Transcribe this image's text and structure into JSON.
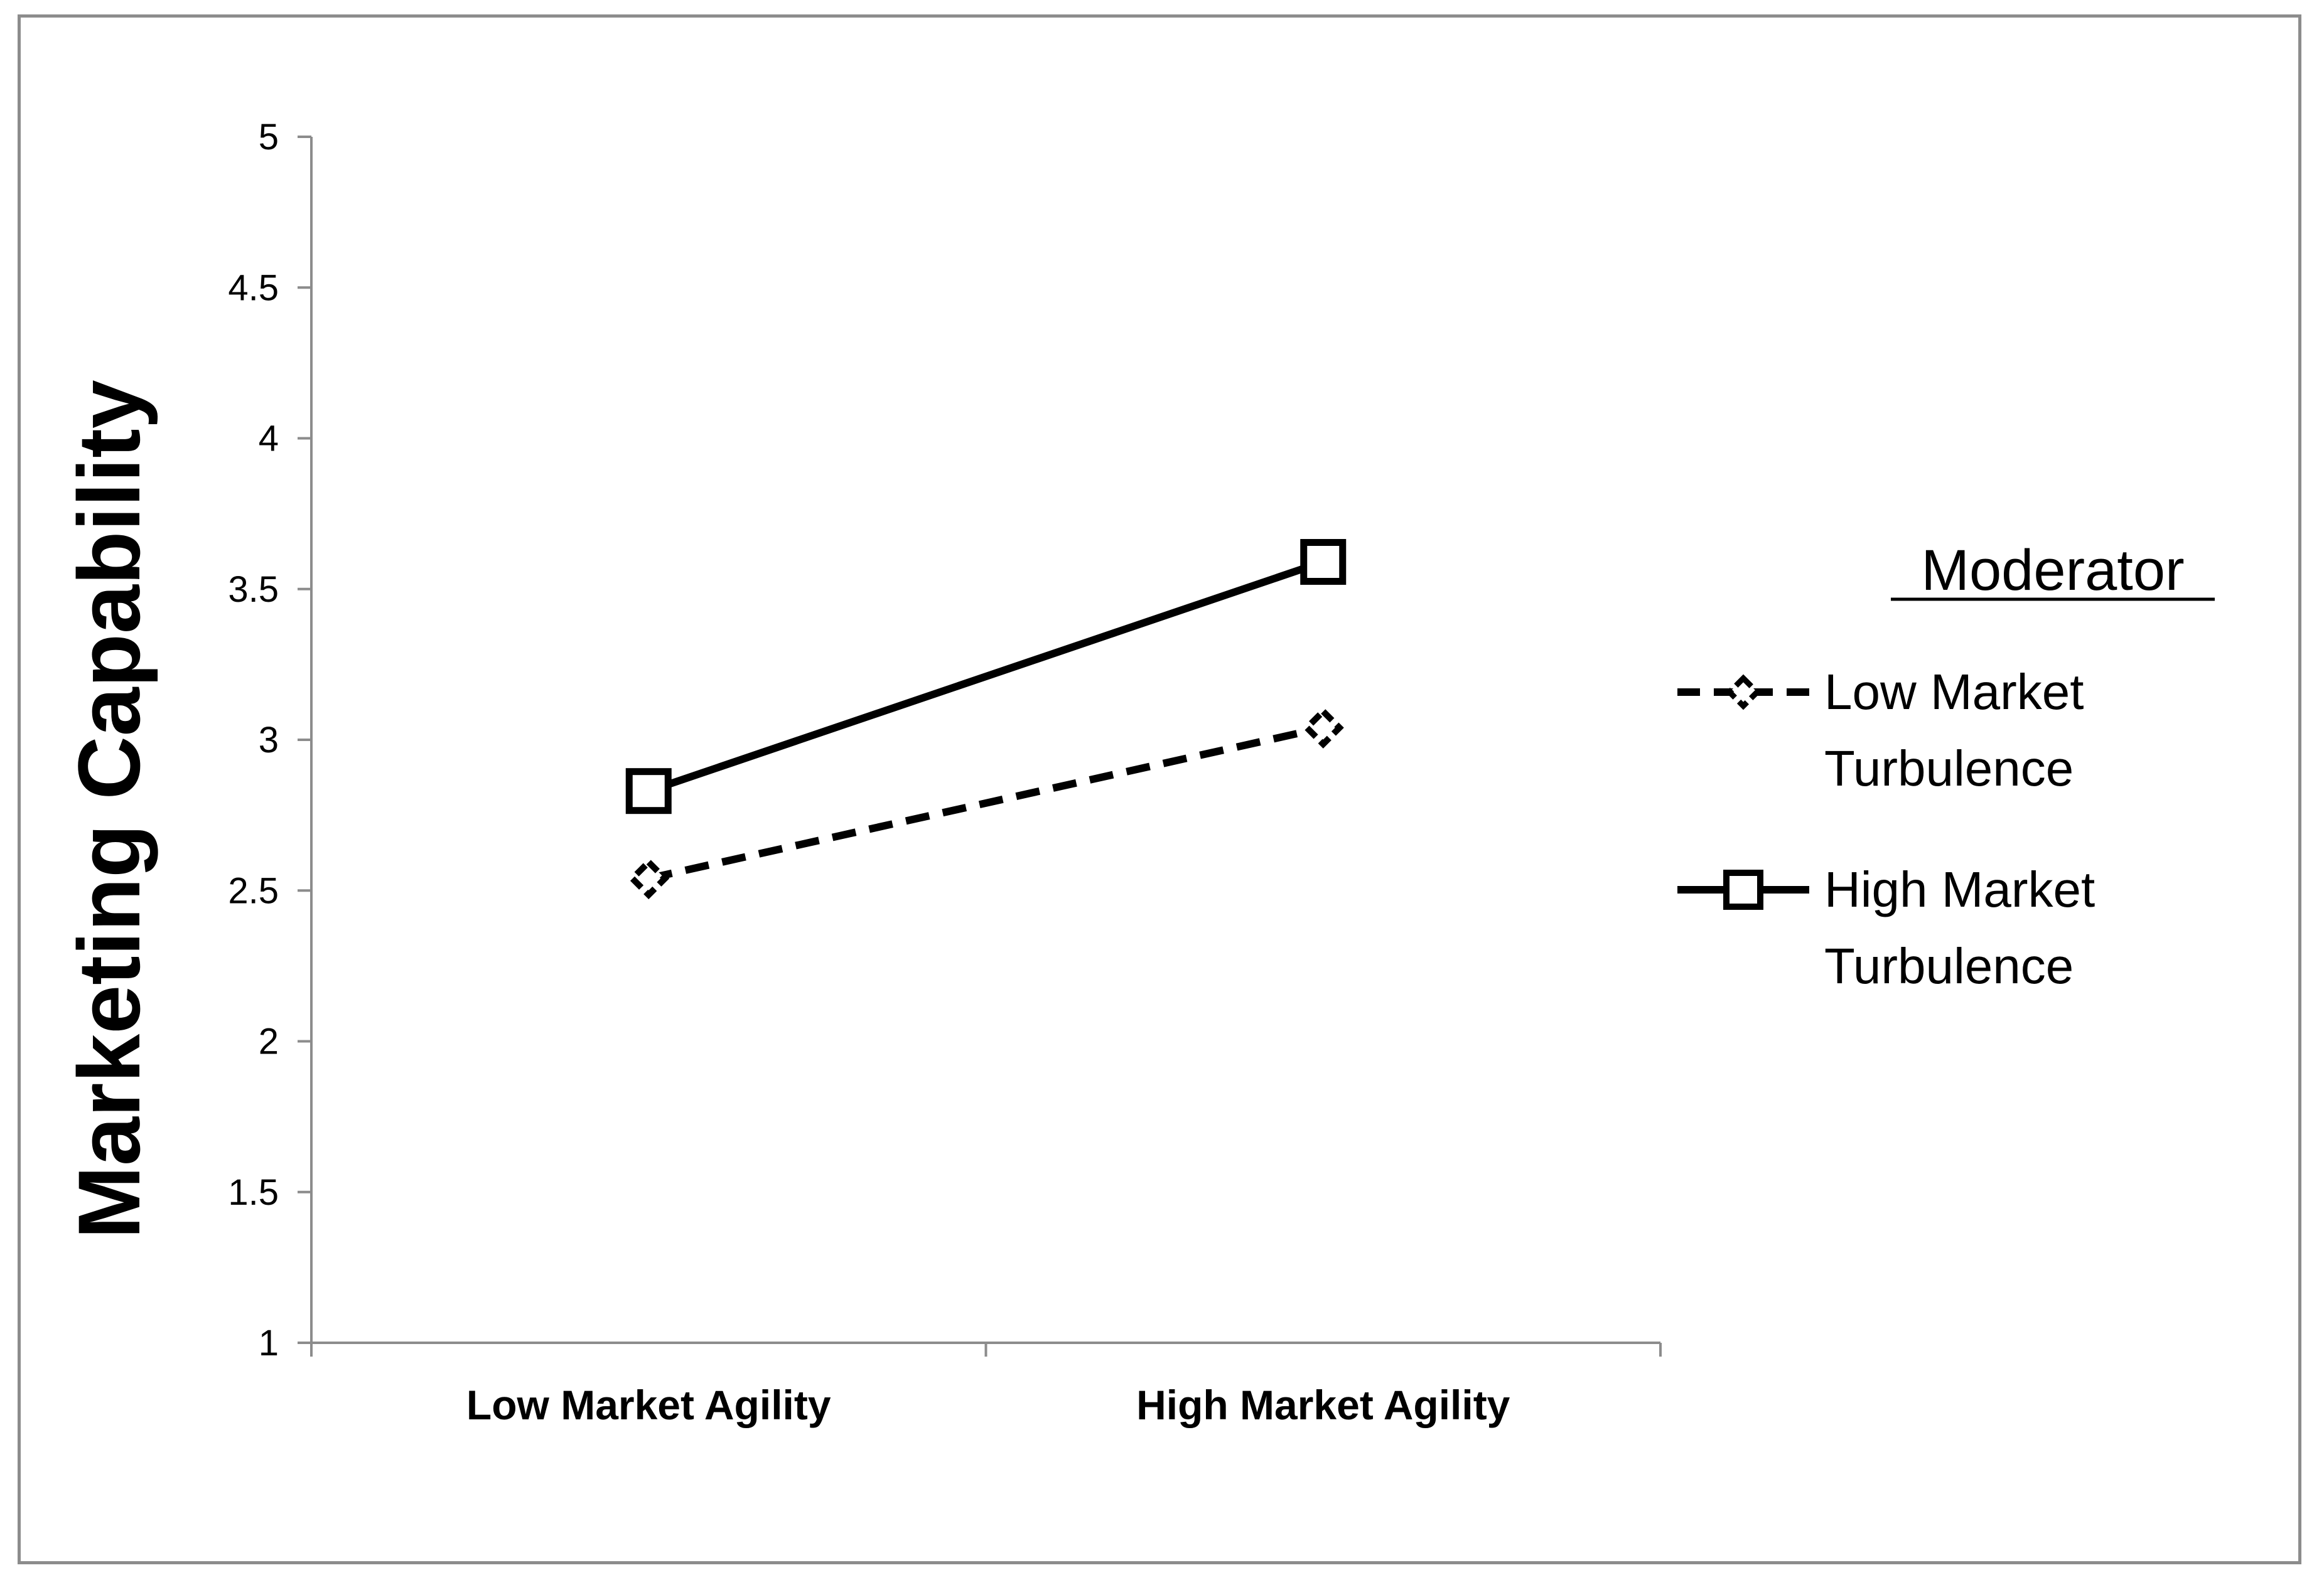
{
  "chart_data": {
    "type": "line",
    "categories": [
      "Low Market Agility",
      "High Market Agility"
    ],
    "series": [
      {
        "name": "Low Market Turbulence",
        "values": [
          2.54,
          3.04
        ],
        "line_style": "dashed",
        "marker": "diamond",
        "color": "#000000"
      },
      {
        "name": "High Market Turbulence",
        "values": [
          2.83,
          3.59
        ],
        "line_style": "solid",
        "marker": "square",
        "color": "#000000"
      }
    ],
    "title": "",
    "xlabel": "",
    "ylabel": "Marketing Capability",
    "ylim": [
      1,
      5
    ],
    "yticks": [
      "1",
      "1.5",
      "2",
      "2.5",
      "3",
      "3.5",
      "4",
      "4.5",
      "5"
    ],
    "grid": false,
    "legend": {
      "title": "Moderator",
      "placement": "right",
      "entries": [
        {
          "line1": "Low Market",
          "line2": "Turbulence"
        },
        {
          "line1": "High Market",
          "line2": "Turbulence"
        }
      ]
    }
  }
}
